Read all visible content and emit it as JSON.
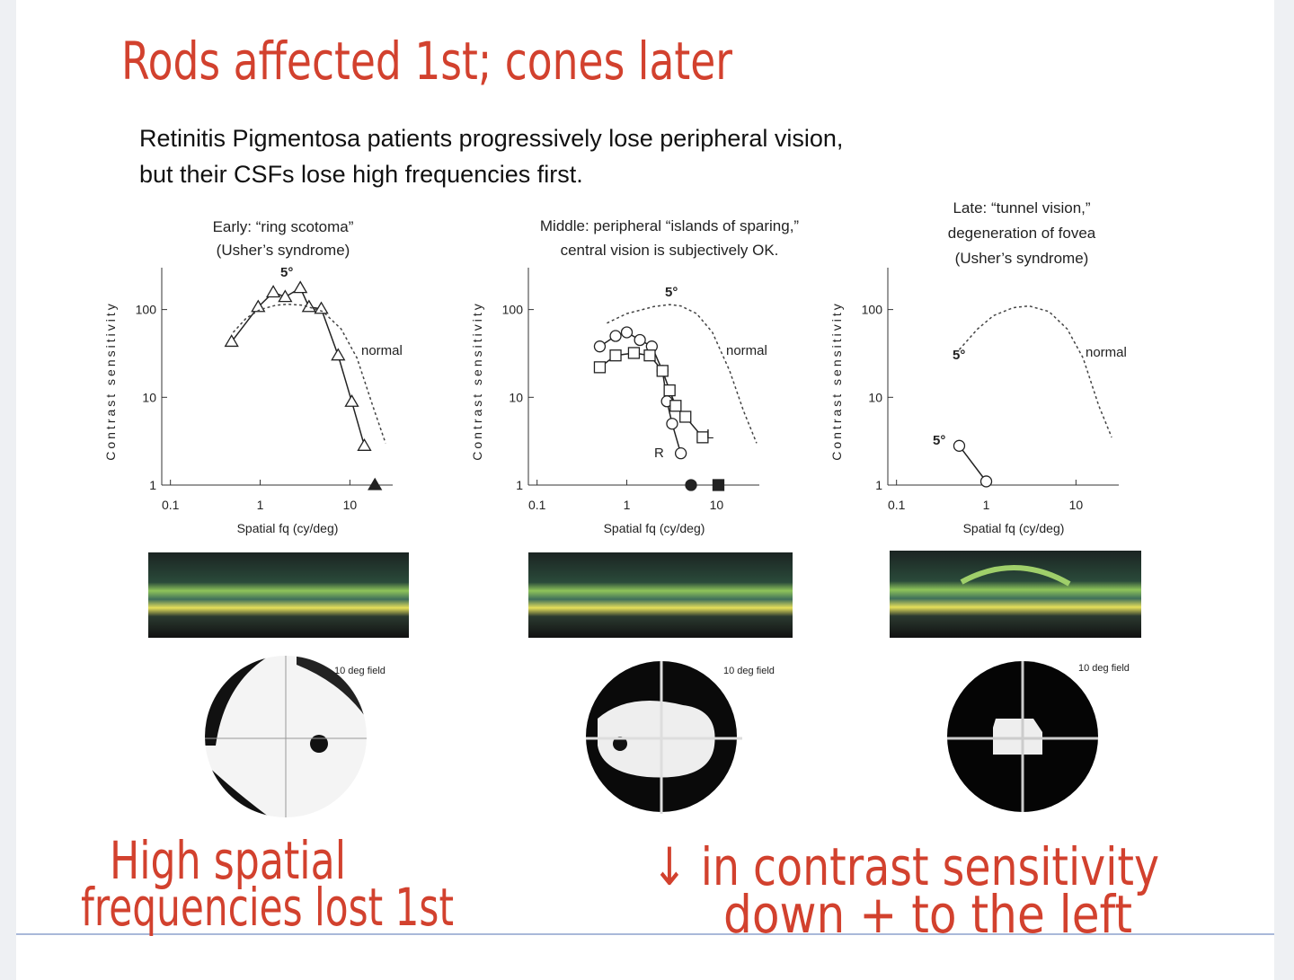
{
  "handwritten_notes": {
    "top": "Rods affected 1st; cones later",
    "left": [
      "High spatial",
      "frequencies lost 1st"
    ],
    "right": [
      "↓ in contrast sensitivity",
      "down + to the left"
    ]
  },
  "slide": {
    "text": [
      "Retinitis Pigmentosa patients progressively lose peripheral vision,",
      "but their CSFs lose high frequencies first."
    ],
    "field_labels": [
      "10 deg field",
      "10 deg field",
      "10 deg field"
    ]
  },
  "chart_data": [
    {
      "type": "line",
      "title": [
        "Early: “ring scotoma”",
        "(Usher’s syndrome)"
      ],
      "xlabel": "Spatial fq (cy/deg)",
      "ylabel": "Contrast sensitivity",
      "log_scale": true,
      "xlim": [
        0.08,
        30
      ],
      "ylim": [
        1,
        300
      ],
      "xticks": [
        0.1,
        1,
        10
      ],
      "yticks": [
        1,
        10,
        100
      ],
      "annotations": [
        "5°"
      ],
      "series": [
        {
          "marker": "triangle",
          "line": "solid",
          "color": "#222222",
          "x": [
            0.48,
            0.95,
            1.4,
            1.9,
            2.8,
            3.5,
            4.8,
            7.4,
            10.5,
            14.5
          ],
          "values": [
            43,
            107,
            157,
            139,
            176,
            107,
            102,
            30,
            8.9,
            2.8
          ]
        },
        {
          "name": "normal",
          "line": "dashed",
          "color": "#444444",
          "x": [
            0.5,
            0.7,
            1,
            1.5,
            2,
            3,
            5,
            8,
            12,
            18,
            25
          ],
          "values": [
            55,
            80,
            100,
            112,
            115,
            112,
            95,
            60,
            28,
            8,
            3
          ]
        },
        {
          "marker": "triangle",
          "filled": true,
          "line": "none",
          "color": "#222222",
          "x": [
            19
          ],
          "values": [
            1
          ]
        }
      ]
    },
    {
      "type": "line",
      "title": [
        "Middle: peripheral “islands of sparing,”",
        "central vision is subjectively OK."
      ],
      "xlabel": "Spatial fq (cy/deg)",
      "ylabel": "Contrast sensitivity",
      "log_scale": true,
      "xlim": [
        0.08,
        30
      ],
      "ylim": [
        1,
        300
      ],
      "xticks": [
        0.1,
        1,
        10
      ],
      "yticks": [
        1,
        10,
        100
      ],
      "annotations": [
        "5°"
      ],
      "series": [
        {
          "name": "normal",
          "line": "dashed",
          "color": "#444444",
          "x": [
            0.6,
            1,
            1.5,
            2,
            3,
            4,
            6,
            9,
            14,
            20,
            28
          ],
          "values": [
            70,
            90,
            100,
            108,
            114,
            110,
            90,
            55,
            20,
            7,
            3
          ]
        },
        {
          "name": "R",
          "marker": "circle",
          "line": "solid",
          "color": "#222222",
          "x": [
            0.5,
            0.75,
            1.0,
            1.4,
            1.9,
            2.5,
            2.8,
            3.2,
            4.0
          ],
          "values": [
            38,
            50,
            55,
            45,
            38,
            20,
            9,
            5,
            2.3
          ]
        },
        {
          "name": "L",
          "marker": "square",
          "line": "solid",
          "color": "#222222",
          "x": [
            0.5,
            0.75,
            1.2,
            1.8,
            2.5,
            3.0,
            3.5,
            4.5,
            7.0
          ],
          "values": [
            22,
            30,
            32,
            30,
            20,
            12,
            8,
            6,
            3.5
          ]
        },
        {
          "marker": "circle",
          "filled": true,
          "line": "none",
          "color": "#222222",
          "x": [
            5.2
          ],
          "values": [
            1
          ]
        },
        {
          "marker": "square",
          "filled": true,
          "line": "none",
          "color": "#222222",
          "x": [
            10.5
          ],
          "values": [
            1
          ]
        }
      ]
    },
    {
      "type": "line",
      "title": [
        "Late: “tunnel vision,”",
        "degeneration of fovea",
        "(Usher’s syndrome)"
      ],
      "xlabel": "Spatial fq (cy/deg)",
      "ylabel": "Contrast sensitivity",
      "log_scale": true,
      "xlim": [
        0.08,
        30
      ],
      "ylim": [
        1,
        300
      ],
      "xticks": [
        0.1,
        1,
        10
      ],
      "yticks": [
        1,
        10,
        100
      ],
      "annotations": [
        "5°",
        "5°"
      ],
      "series": [
        {
          "name": "normal",
          "line": "dashed",
          "color": "#444444",
          "x": [
            0.5,
            0.8,
            1.2,
            2,
            3,
            5,
            8,
            12,
            18,
            25
          ],
          "values": [
            35,
            60,
            85,
            105,
            110,
            95,
            60,
            28,
            8,
            3.5
          ]
        },
        {
          "marker": "circle",
          "line": "solid",
          "color": "#222222",
          "x": [
            0.5,
            1.0
          ],
          "values": [
            2.8,
            1.1
          ]
        }
      ]
    }
  ]
}
